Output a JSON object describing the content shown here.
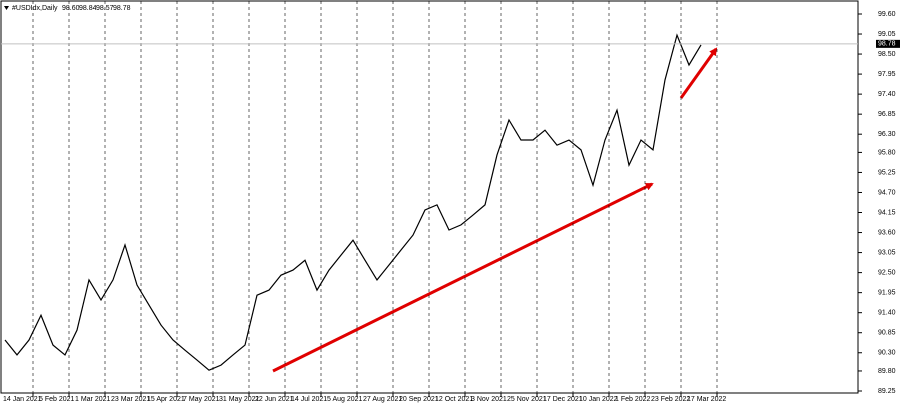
{
  "chart_data": {
    "type": "line",
    "symbol": "#USDIdx,Daily",
    "quote": {
      "open": {
        "value": 98.6,
        "label": "98.60"
      },
      "high": {
        "value": 98.84,
        "label": "98.84"
      },
      "low": {
        "value": 98.57,
        "label": "98.57"
      },
      "close": {
        "value": 98.78,
        "label": "98.78"
      }
    },
    "values": [
      90.65,
      90.24,
      90.65,
      91.33,
      90.51,
      90.24,
      90.92,
      92.3,
      91.75,
      92.3,
      93.26,
      92.16,
      91.61,
      91.06,
      90.65,
      90.37,
      90.1,
      89.82,
      89.96,
      90.24,
      90.51,
      91.88,
      92.02,
      92.43,
      92.57,
      92.84,
      92.02,
      92.57,
      92.98,
      93.39,
      92.84,
      92.3,
      92.71,
      93.12,
      93.53,
      94.22,
      94.36,
      93.67,
      93.81,
      94.08,
      94.36,
      95.73,
      96.69,
      96.14,
      96.14,
      96.41,
      96.0,
      96.14,
      95.87,
      94.9,
      96.14,
      96.96,
      95.45,
      96.14,
      95.87,
      97.79,
      99.02,
      98.2,
      98.75
    ],
    "color": "#000000",
    "ylim": [
      89.195,
      99.984
    ],
    "yticks": [
      {
        "value": 99.6,
        "label": "99.60"
      },
      {
        "value": 99.05,
        "label": "99.05"
      },
      {
        "value": 98.5,
        "label": "98.50"
      },
      {
        "value": 97.95,
        "label": "97.95"
      },
      {
        "value": 97.4,
        "label": "97.40"
      },
      {
        "value": 96.85,
        "label": "96.85"
      },
      {
        "value": 96.3,
        "label": "96.30"
      },
      {
        "value": 95.8,
        "label": "95.80"
      },
      {
        "value": 95.25,
        "label": "95.25"
      },
      {
        "value": 94.7,
        "label": "94.70"
      },
      {
        "value": 94.15,
        "label": "94.15"
      },
      {
        "value": 93.6,
        "label": "93.60"
      },
      {
        "value": 93.05,
        "label": "93.05"
      },
      {
        "value": 92.5,
        "label": "92.50"
      },
      {
        "value": 91.95,
        "label": "91.95"
      },
      {
        "value": 91.4,
        "label": "91.40"
      },
      {
        "value": 90.85,
        "label": "90.85"
      },
      {
        "value": 90.3,
        "label": "90.30"
      },
      {
        "value": 89.8,
        "label": "89.80"
      },
      {
        "value": 89.25,
        "label": "89.25"
      }
    ],
    "xticks": [
      "14 Jan 2021",
      "5 Feb 2021",
      "1 Mar 2021",
      "23 Mar 2021",
      "15 Apr 2021",
      "7 May 2021",
      "31 May 2021",
      "22 Jun 2021",
      "14 Jul 2021",
      "5 Aug 2021",
      "27 Aug 2021",
      "20 Sep 2021",
      "12 Oct 2021",
      "3 Nov 2021",
      "25 Nov 2021",
      "17 Dec 2021",
      "10 Jan 2022",
      "1 Feb 2022",
      "23 Feb 2022",
      "17 Mar 2022"
    ],
    "grid": true
  }
}
